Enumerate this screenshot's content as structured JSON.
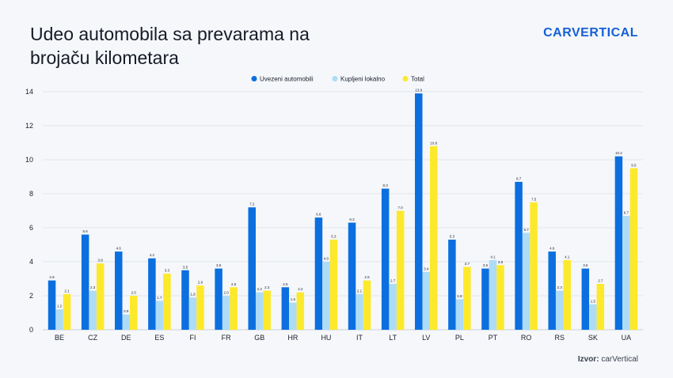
{
  "title_line1": "Udeo automobila sa prevarama na",
  "title_line2": "brojaču kilometara",
  "logo_text": "CARVERTICAL",
  "source_label": "Izvor:",
  "source_value": "carVertical",
  "colors": {
    "imported": "#0b6fe0",
    "local": "#aedcf7",
    "total": "#fde92b",
    "grid": "#e1e5ec",
    "logo": "#1560d6"
  },
  "chart_data": {
    "type": "bar",
    "title": "Udeo automobila sa prevarama na brojaču kilometara",
    "xlabel": "",
    "ylabel": "",
    "ylim": [
      0,
      14
    ],
    "yticks": [
      0,
      2,
      4,
      6,
      8,
      10,
      12,
      14
    ],
    "grid": true,
    "legend_position": "top-center",
    "categories": [
      "BE",
      "CZ",
      "DE",
      "ES",
      "FI",
      "FR",
      "GB",
      "HR",
      "HU",
      "IT",
      "LT",
      "LV",
      "PL",
      "PT",
      "RO",
      "RS",
      "SK",
      "UA"
    ],
    "series": [
      {
        "name": "Uvezeni automobili",
        "values": [
          2.9,
          5.6,
          4.6,
          4.2,
          3.5,
          3.6,
          7.2,
          2.5,
          6.6,
          6.3,
          8.3,
          13.9,
          5.3,
          3.6,
          8.7,
          4.6,
          3.6,
          10.2
        ]
      },
      {
        "name": "Kupljeni lokalno",
        "values": [
          1.2,
          2.3,
          0.9,
          1.7,
          1.9,
          2.0,
          2.2,
          1.6,
          4.0,
          2.1,
          2.7,
          3.4,
          1.8,
          4.1,
          5.7,
          2.3,
          1.5,
          6.7
        ]
      },
      {
        "name": "Total",
        "values": [
          2.1,
          3.9,
          2.0,
          3.3,
          2.6,
          2.5,
          2.3,
          2.2,
          5.3,
          2.9,
          7.0,
          10.8,
          3.7,
          3.8,
          7.5,
          4.1,
          2.7,
          9.5
        ]
      }
    ]
  }
}
